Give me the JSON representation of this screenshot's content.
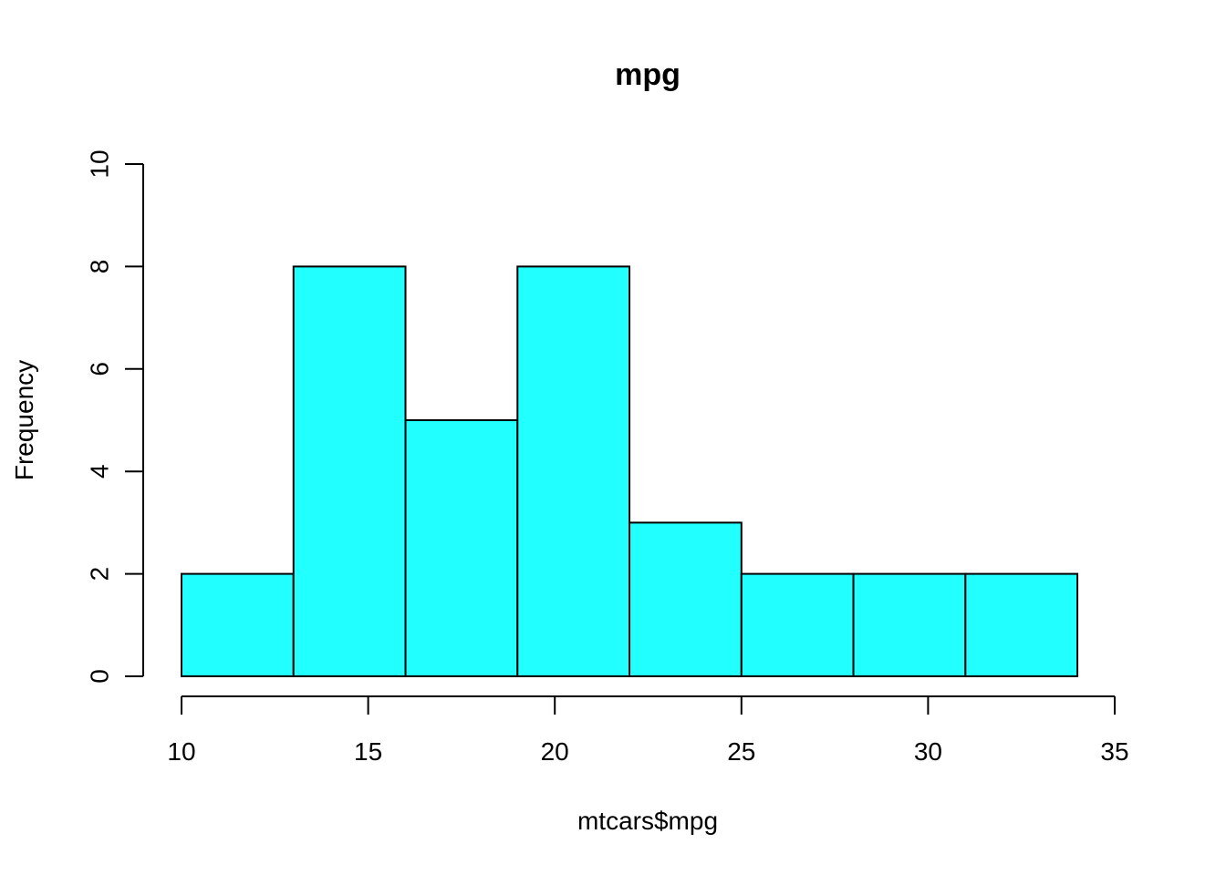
{
  "chart_data": {
    "type": "bar",
    "subtype": "histogram",
    "title": "mpg",
    "xlabel": "mtcars$mpg",
    "ylabel": "Frequency",
    "bins": [
      {
        "from": 10,
        "to": 13,
        "count": 2
      },
      {
        "from": 13,
        "to": 16,
        "count": 8
      },
      {
        "from": 16,
        "to": 19,
        "count": 5
      },
      {
        "from": 19,
        "to": 22,
        "count": 8
      },
      {
        "from": 22,
        "to": 25,
        "count": 3
      },
      {
        "from": 25,
        "to": 28,
        "count": 2
      },
      {
        "from": 28,
        "to": 31,
        "count": 2
      },
      {
        "from": 31,
        "to": 34,
        "count": 2
      }
    ],
    "xlim": [
      10,
      35
    ],
    "ylim": [
      0,
      10
    ],
    "xticks": [
      "10",
      "15",
      "20",
      "25",
      "30",
      "35"
    ],
    "yticks": [
      "0",
      "2",
      "4",
      "6",
      "8",
      "10"
    ],
    "grid": false,
    "legend": "none",
    "colors": {
      "bar_fill": "#22ffff",
      "bar_stroke": "#000000"
    }
  }
}
